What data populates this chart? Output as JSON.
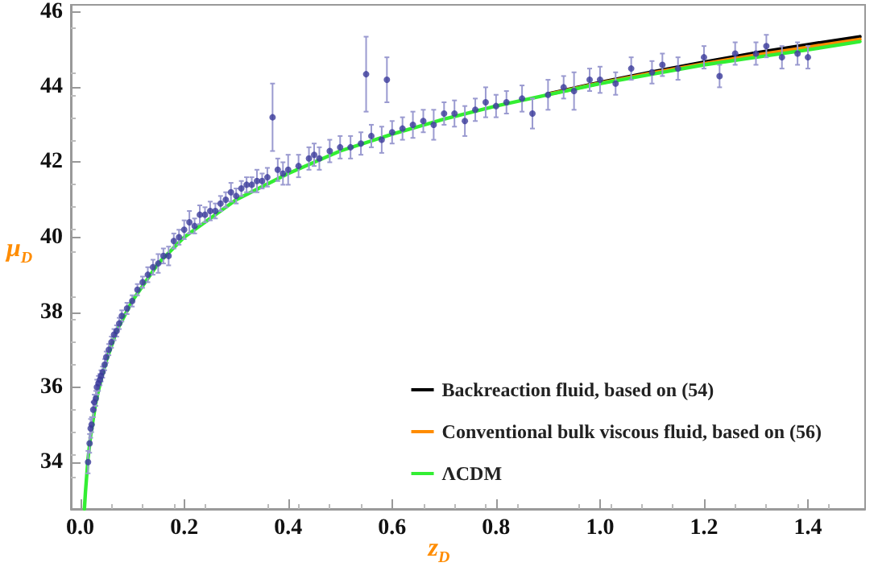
{
  "chart_data": {
    "type": "scatter",
    "xlabel": "z$_{D}$",
    "ylabel": "μ$_{D}$",
    "xlim": [
      -0.018,
      1.51
    ],
    "ylim": [
      32.75,
      46.2
    ],
    "xticks": [
      {
        "value": 0,
        "label": "0.0"
      },
      {
        "value": 0.2,
        "label": "0.2"
      },
      {
        "value": 0.4,
        "label": "0.4"
      },
      {
        "value": 0.6,
        "label": "0.6"
      },
      {
        "value": 0.8,
        "label": "0.8"
      },
      {
        "value": 1,
        "label": "1.0"
      },
      {
        "value": 1.2,
        "label": "1.2"
      },
      {
        "value": 1.4,
        "label": "1.4"
      }
    ],
    "yticks": [
      34,
      36,
      38,
      40,
      42,
      44,
      46
    ],
    "grid": false,
    "legend": "bottom right",
    "series": [
      {
        "type": "scatter",
        "color": "#3a3a9a",
        "marker": "circle",
        "x": [
          0.015,
          0.018,
          0.02,
          0.022,
          0.025,
          0.027,
          0.03,
          0.032,
          0.035,
          0.038,
          0.04,
          0.043,
          0.047,
          0.05,
          0.055,
          0.06,
          0.065,
          0.07,
          0.075,
          0.08,
          0.09,
          0.1,
          0.11,
          0.12,
          0.13,
          0.14,
          0.15,
          0.16,
          0.17,
          0.18,
          0.19,
          0.2,
          0.21,
          0.22,
          0.23,
          0.24,
          0.25,
          0.26,
          0.27,
          0.28,
          0.29,
          0.3,
          0.31,
          0.32,
          0.33,
          0.34,
          0.35,
          0.36,
          0.37,
          0.38,
          0.39,
          0.4,
          0.42,
          0.44,
          0.45,
          0.46,
          0.48,
          0.5,
          0.52,
          0.54,
          0.55,
          0.56,
          0.58,
          0.59,
          0.6,
          0.62,
          0.64,
          0.66,
          0.68,
          0.7,
          0.72,
          0.74,
          0.76,
          0.78,
          0.8,
          0.82,
          0.85,
          0.87,
          0.9,
          0.93,
          0.95,
          0.98,
          1.0,
          1.03,
          1.06,
          1.1,
          1.12,
          1.15,
          1.2,
          1.23,
          1.26,
          1.3,
          1.32,
          1.35,
          1.38,
          1.4
        ],
        "values": [
          34.0,
          34.5,
          34.9,
          35.0,
          35.4,
          35.6,
          35.7,
          36.0,
          36.1,
          36.2,
          36.3,
          36.4,
          36.6,
          36.8,
          37.0,
          37.2,
          37.4,
          37.5,
          37.7,
          37.9,
          38.1,
          38.3,
          38.6,
          38.8,
          39.0,
          39.2,
          39.3,
          39.5,
          39.5,
          39.9,
          40.0,
          40.2,
          40.4,
          40.3,
          40.6,
          40.6,
          40.7,
          40.7,
          40.9,
          41.0,
          41.2,
          41.1,
          41.3,
          41.4,
          41.4,
          41.5,
          41.5,
          41.6,
          43.2,
          41.8,
          41.7,
          41.8,
          41.9,
          42.1,
          42.2,
          42.1,
          42.3,
          42.4,
          42.4,
          42.5,
          44.35,
          42.7,
          42.6,
          44.2,
          42.8,
          42.9,
          43.0,
          43.1,
          43.0,
          43.3,
          43.3,
          43.1,
          43.4,
          43.6,
          43.5,
          43.6,
          43.7,
          43.3,
          43.8,
          44.0,
          43.9,
          44.2,
          44.2,
          44.1,
          44.5,
          44.4,
          44.6,
          44.5,
          44.8,
          44.3,
          44.9,
          44.9,
          45.1,
          44.8,
          44.9,
          44.8
        ],
        "errors": [
          0.3,
          0.25,
          0.25,
          0.2,
          0.2,
          0.2,
          0.2,
          0.2,
          0.2,
          0.15,
          0.15,
          0.15,
          0.15,
          0.15,
          0.15,
          0.15,
          0.15,
          0.15,
          0.15,
          0.15,
          0.15,
          0.15,
          0.15,
          0.15,
          0.2,
          0.2,
          0.25,
          0.2,
          0.25,
          0.2,
          0.2,
          0.25,
          0.3,
          0.2,
          0.25,
          0.2,
          0.25,
          0.2,
          0.2,
          0.2,
          0.25,
          0.2,
          0.2,
          0.2,
          0.2,
          0.3,
          0.2,
          0.25,
          0.9,
          0.3,
          0.3,
          0.4,
          0.3,
          0.3,
          0.3,
          0.3,
          0.3,
          0.3,
          0.3,
          0.3,
          1.0,
          0.3,
          0.35,
          0.6,
          0.3,
          0.3,
          0.35,
          0.3,
          0.4,
          0.3,
          0.35,
          0.4,
          0.3,
          0.4,
          0.3,
          0.3,
          0.35,
          0.4,
          0.4,
          0.3,
          0.5,
          0.3,
          0.35,
          0.3,
          0.3,
          0.3,
          0.3,
          0.3,
          0.3,
          0.3,
          0.3,
          0.3,
          0.3,
          0.3,
          0.3,
          0.3
        ]
      },
      {
        "type": "line",
        "name": "Backreaction fluid, based on (54)",
        "color": "#000000",
        "marker": "none",
        "line_style": "solid",
        "x": [
          0.9,
          1.0,
          1.1,
          1.2,
          1.3,
          1.4,
          1.5
        ],
        "values": [
          43.82,
          44.13,
          44.41,
          44.67,
          44.92,
          45.14,
          45.35
        ]
      },
      {
        "type": "line",
        "name": "Conventional bulk viscous fluid, based on (56)",
        "color": "#ff8c00",
        "marker": "none",
        "line_style": "solid",
        "x": [
          0.9,
          1.0,
          1.1,
          1.2,
          1.3,
          1.4,
          1.5
        ],
        "values": [
          43.81,
          44.11,
          44.38,
          44.63,
          44.86,
          45.07,
          45.28
        ]
      },
      {
        "type": "line",
        "name": "ΛCDM",
        "color": "#33ee33",
        "marker": "none",
        "line_style": "solid",
        "x": [
          0.008,
          0.01,
          0.015,
          0.02,
          0.03,
          0.04,
          0.05,
          0.07,
          0.1,
          0.15,
          0.2,
          0.25,
          0.3,
          0.4,
          0.5,
          0.6,
          0.7,
          0.8,
          0.9,
          1.0,
          1.1,
          1.2,
          1.3,
          1.4,
          1.5
        ],
        "values": [
          32.75,
          33.2,
          34.1,
          34.7,
          35.6,
          36.2,
          36.7,
          37.5,
          38.3,
          39.3,
          40.0,
          40.5,
          41.0,
          41.7,
          42.3,
          42.75,
          43.15,
          43.5,
          43.8,
          44.1,
          44.35,
          44.6,
          44.8,
          45.0,
          45.22
        ]
      }
    ]
  }
}
